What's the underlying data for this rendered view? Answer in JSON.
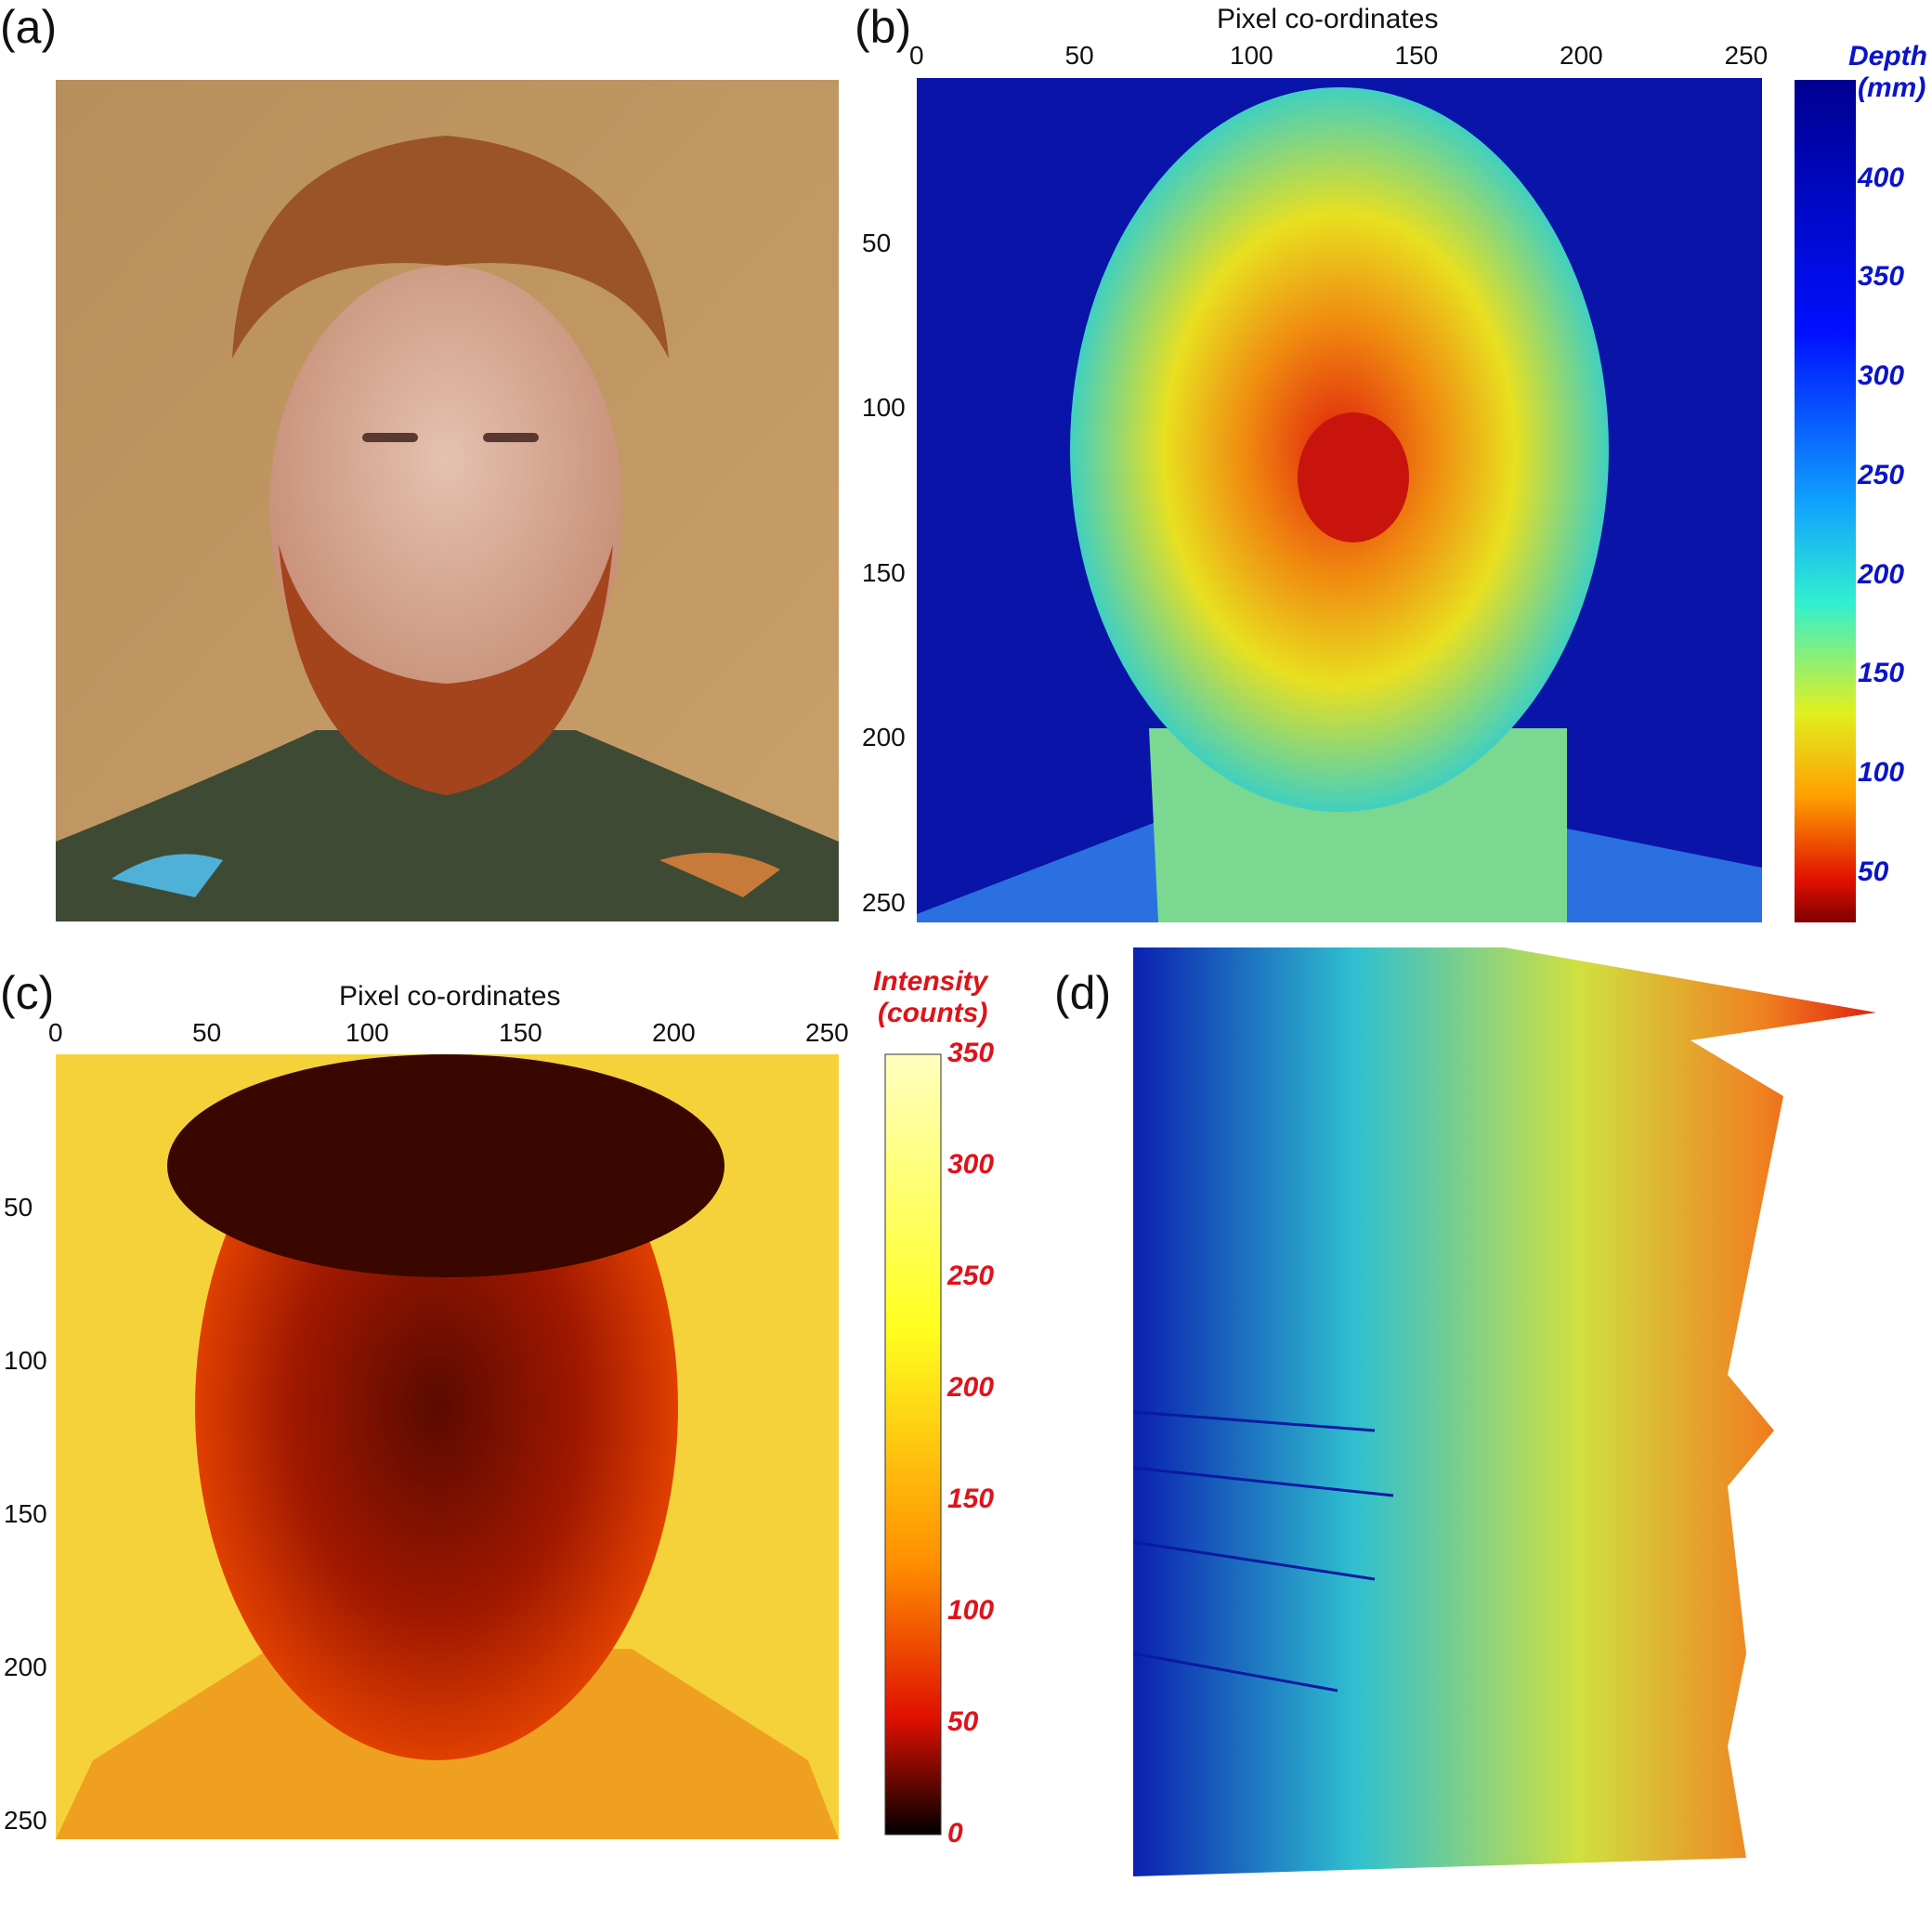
{
  "panels": {
    "a": {
      "label": "(a)"
    },
    "b": {
      "label": "(b)"
    },
    "c": {
      "label": "(c)"
    },
    "d": {
      "label": "(d)"
    }
  },
  "chart_data": [
    {
      "panel": "b",
      "type": "heatmap",
      "title": "",
      "xlabel": "Pixel co-ordinates",
      "ylabel": "",
      "xlim": [
        0,
        256
      ],
      "ylim": [
        0,
        256
      ],
      "x_ticks": [
        "0",
        "50",
        "100",
        "150",
        "200",
        "250"
      ],
      "y_ticks": [
        "50",
        "100",
        "150",
        "200",
        "250"
      ],
      "x_axis_position": "top",
      "colorbar": {
        "label_line1": "Depth",
        "label_line2": "(mm)",
        "ticks": [
          "400",
          "350",
          "300",
          "250",
          "200",
          "150",
          "100",
          "50"
        ],
        "range": [
          25,
          450
        ],
        "colormap": "jet",
        "text_color": "#0a14c8"
      }
    },
    {
      "panel": "c",
      "type": "heatmap",
      "title": "",
      "xlabel": "Pixel co-ordinates",
      "ylabel": "",
      "xlim": [
        0,
        256
      ],
      "ylim": [
        0,
        256
      ],
      "x_ticks": [
        "0",
        "50",
        "100",
        "150",
        "200",
        "250"
      ],
      "y_ticks": [
        "50",
        "100",
        "150",
        "200",
        "250"
      ],
      "x_axis_position": "top",
      "colorbar": {
        "label_line1": "Intensity",
        "label_line2": "(counts)",
        "ticks": [
          "350",
          "300",
          "250",
          "200",
          "150",
          "100",
          "50",
          "0"
        ],
        "range": [
          0,
          350
        ],
        "colormap": "hot",
        "text_color": "#e0121a"
      }
    },
    {
      "panel": "d",
      "type": "surface",
      "colormap": "jet"
    }
  ]
}
